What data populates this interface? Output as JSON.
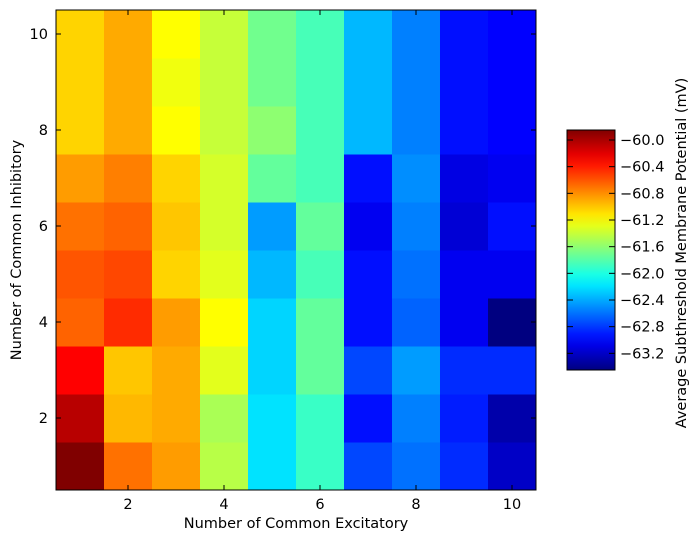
{
  "chart_data": {
    "type": "heatmap",
    "title": "",
    "xlabel": "Number of Common Excitatory",
    "ylabel": "Number of Common Inhibitory",
    "x": [
      1,
      2,
      3,
      4,
      5,
      6,
      7,
      8,
      9,
      10
    ],
    "y": [
      1,
      2,
      3,
      4,
      5,
      6,
      7,
      8,
      9,
      10
    ],
    "xlim": [
      0.5,
      10.5
    ],
    "ylim": [
      0.5,
      10.5
    ],
    "xticks": [
      2,
      4,
      6,
      8,
      10
    ],
    "yticks": [
      2,
      4,
      6,
      8,
      10
    ],
    "colormap": "jet",
    "color_range": [
      -63.45,
      -59.85
    ],
    "colorbar": {
      "label": "Average Subthreshold Membrane Potential (mV)",
      "ticks": [
        -60.0,
        -60.4,
        -60.8,
        -61.2,
        -61.6,
        -62.0,
        -62.4,
        -62.8,
        -63.2
      ],
      "tick_labels": [
        "−60.0",
        "−60.4",
        "−60.8",
        "−61.2",
        "−61.6",
        "−62.0",
        "−62.4",
        "−62.8",
        "−63.2"
      ]
    },
    "values": [
      [
        -59.85,
        -60.7,
        -60.85,
        -61.45,
        -62.2,
        -61.9,
        -62.75,
        -62.6,
        -62.85,
        -63.2
      ],
      [
        -60.05,
        -60.95,
        -60.9,
        -61.5,
        -62.2,
        -61.9,
        -62.95,
        -62.55,
        -62.9,
        -63.3
      ],
      [
        -60.3,
        -61.0,
        -60.9,
        -61.3,
        -62.25,
        -61.75,
        -62.75,
        -62.45,
        -62.85,
        -62.85
      ],
      [
        -60.65,
        -60.45,
        -60.85,
        -61.2,
        -62.25,
        -61.75,
        -62.95,
        -62.65,
        -63.05,
        -63.45
      ],
      [
        -60.6,
        -60.55,
        -61.05,
        -61.3,
        -62.35,
        -61.85,
        -62.95,
        -62.6,
        -63.05,
        -63.05
      ],
      [
        -60.7,
        -60.65,
        -61.0,
        -61.35,
        -62.45,
        -61.75,
        -63.05,
        -62.55,
        -63.15,
        -62.95
      ],
      [
        -60.85,
        -60.75,
        -61.05,
        -61.35,
        -61.75,
        -61.85,
        -62.95,
        -62.5,
        -63.1,
        -63.05
      ],
      [
        -61.05,
        -60.9,
        -61.2,
        -61.4,
        -61.6,
        -61.85,
        -62.35,
        -62.55,
        -62.95,
        -63.0
      ],
      [
        -61.05,
        -60.9,
        -61.25,
        -61.4,
        -61.7,
        -61.85,
        -62.35,
        -62.55,
        -62.95,
        -63.0
      ],
      [
        -61.05,
        -60.9,
        -61.2,
        -61.4,
        -61.7,
        -61.85,
        -62.35,
        -62.55,
        -62.95,
        -63.0
      ]
    ]
  }
}
